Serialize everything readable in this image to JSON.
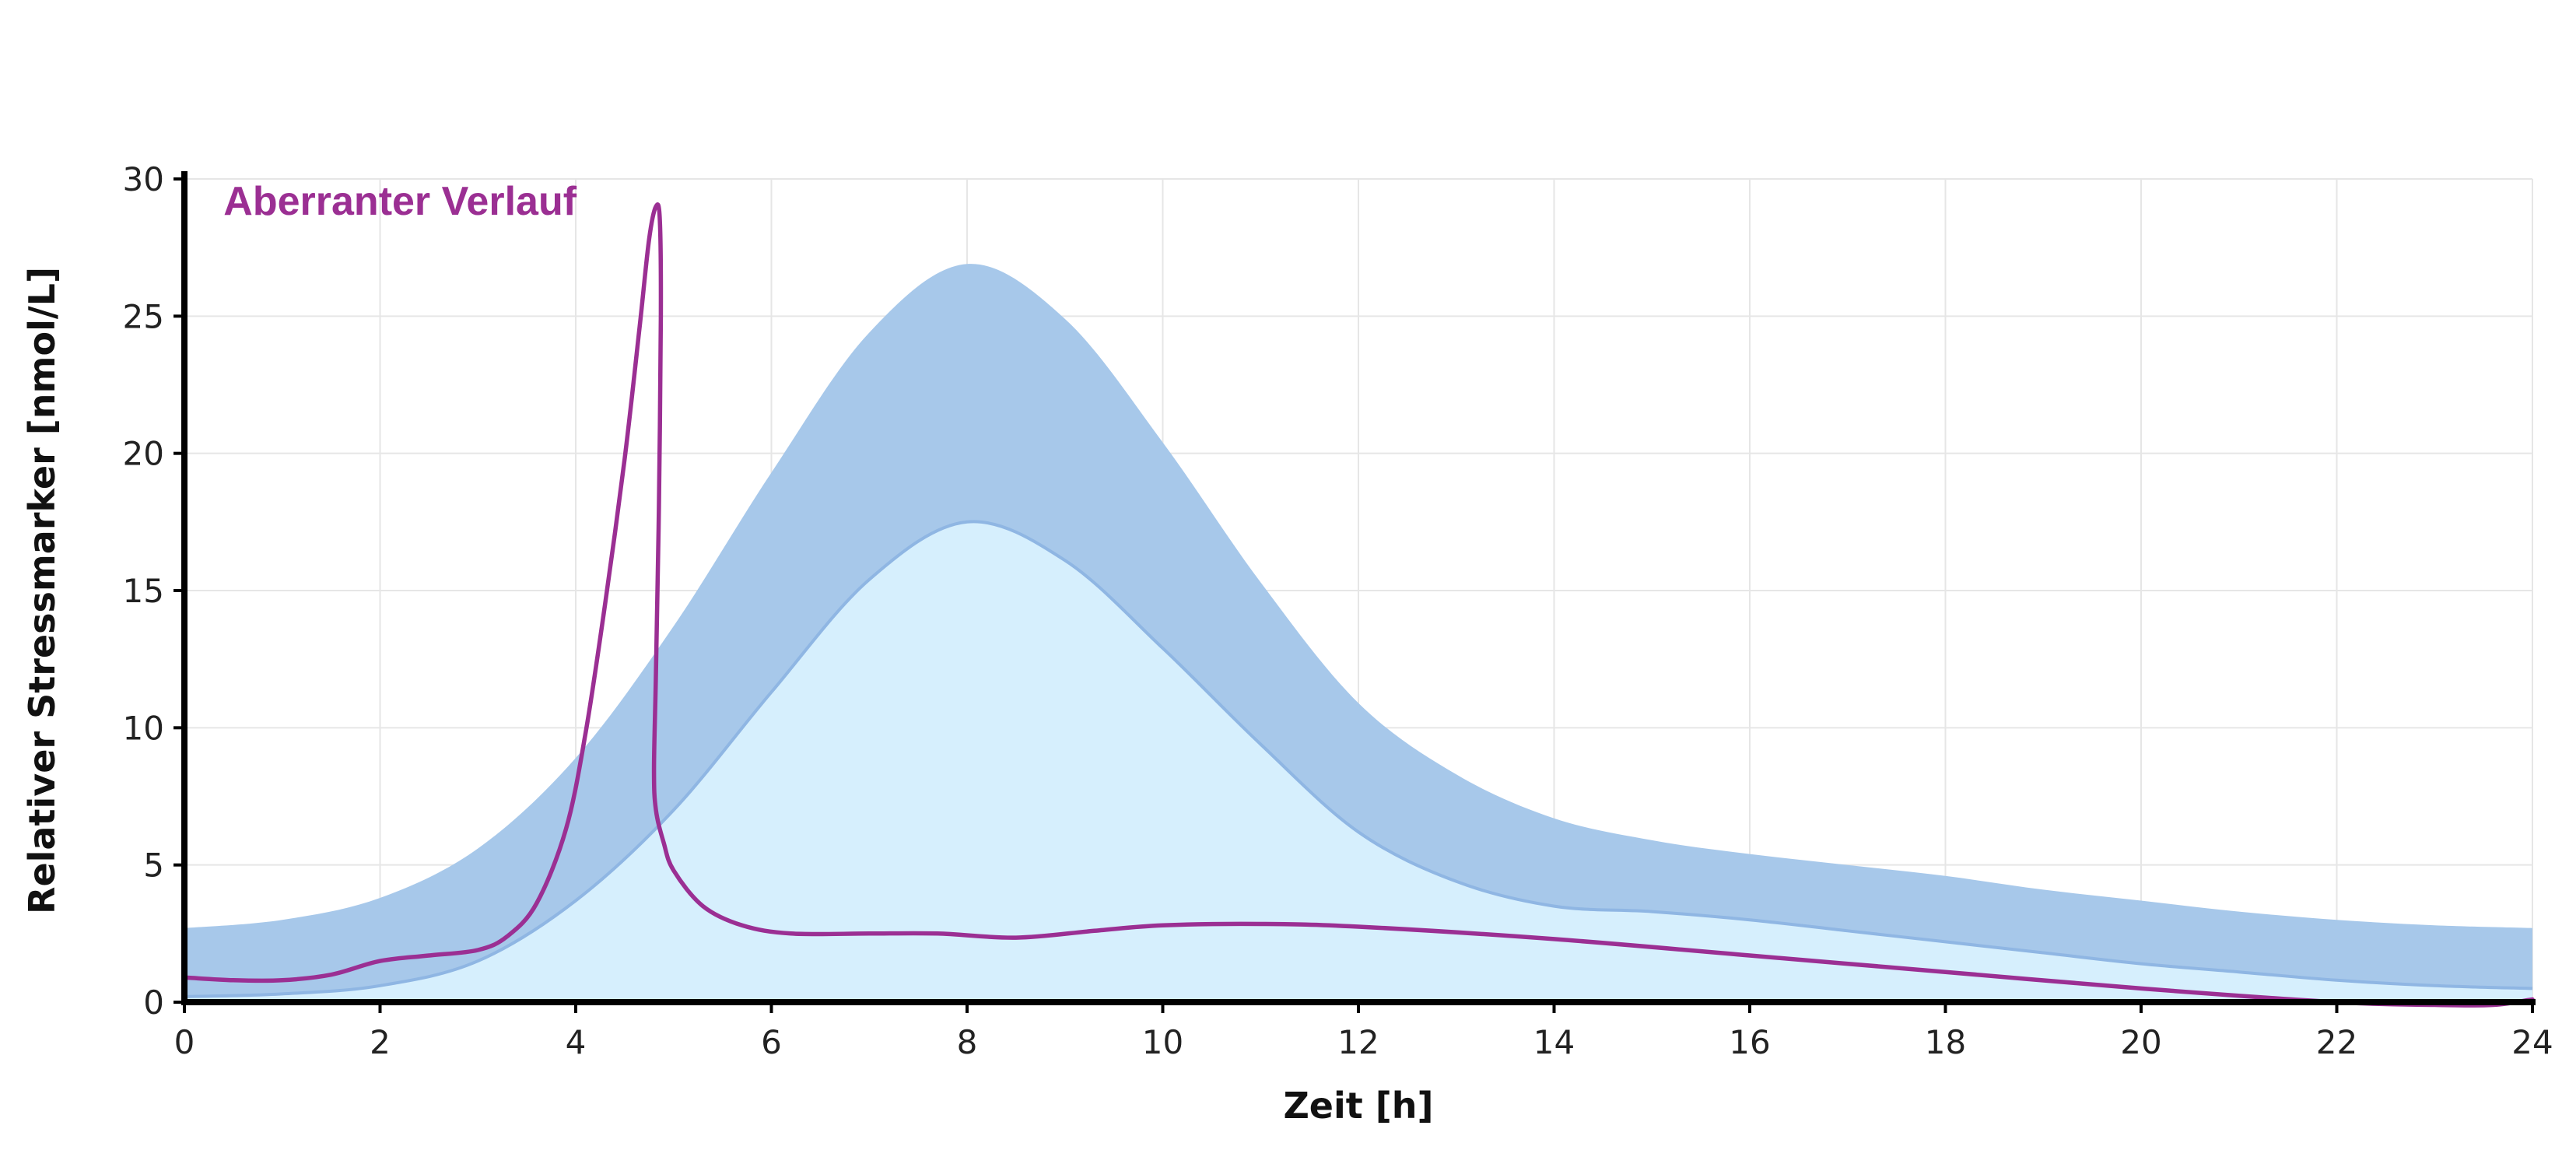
{
  "chart_data": {
    "type": "area",
    "title": "",
    "xlabel": "Zeit [h]",
    "ylabel": "Relativer Stressmarker [nmol/L]",
    "xlim": [
      0,
      24
    ],
    "ylim": [
      0,
      30
    ],
    "x_ticks": [
      0,
      2,
      4,
      6,
      8,
      10,
      12,
      14,
      16,
      18,
      20,
      22,
      24
    ],
    "y_ticks": [
      0,
      5,
      10,
      15,
      20,
      25,
      30
    ],
    "grid": true,
    "legend": "none",
    "colors": {
      "band": "#a7c8ea",
      "band_edge": "#8fb6e3",
      "lower_fill": "#d6effd",
      "aberrant": "#9b2f93"
    },
    "series": [
      {
        "role": "band-upper",
        "x": [
          0,
          1,
          2,
          3,
          4,
          5,
          6,
          7,
          8,
          9,
          10,
          11,
          12,
          13,
          14,
          15,
          16,
          17,
          18,
          19,
          20,
          21,
          22,
          23,
          24
        ],
        "y": [
          2.7,
          3.0,
          3.8,
          5.6,
          8.9,
          13.7,
          19.3,
          24.4,
          26.9,
          24.9,
          20.4,
          15.3,
          10.9,
          8.3,
          6.7,
          5.9,
          5.4,
          5.0,
          4.6,
          4.1,
          3.7,
          3.3,
          3.0,
          2.8,
          2.7
        ]
      },
      {
        "role": "band-lower",
        "x": [
          0,
          1,
          2,
          3,
          4,
          5,
          6,
          7,
          8,
          9,
          10,
          11,
          12,
          13,
          14,
          15,
          16,
          17,
          18,
          19,
          20,
          21,
          22,
          23,
          24
        ],
        "y": [
          0.2,
          0.3,
          0.6,
          1.5,
          3.7,
          7.0,
          11.3,
          15.4,
          17.5,
          16.1,
          12.9,
          9.4,
          6.2,
          4.4,
          3.5,
          3.3,
          3.0,
          2.6,
          2.2,
          1.8,
          1.4,
          1.1,
          0.8,
          0.6,
          0.5
        ]
      },
      {
        "name": "Aberranter Verlauf",
        "role": "aberrant",
        "x": [
          0,
          0.5,
          1,
          1.5,
          2,
          2.5,
          3,
          3.3,
          3.6,
          3.9,
          4.1,
          4.3,
          4.5,
          4.65,
          4.75,
          4.82,
          4.86,
          4.87,
          4.85,
          4.82,
          4.8,
          4.82,
          4.9,
          5.0,
          5.3,
          5.7,
          6.2,
          7.0,
          7.7,
          8.5,
          9.3,
          10.0,
          11.0,
          12.0,
          14.0,
          16.0,
          18.0,
          20.0,
          22.0,
          23.0,
          23.6,
          24.0
        ],
        "y": [
          0.9,
          0.8,
          0.8,
          1.0,
          1.5,
          1.7,
          1.9,
          2.4,
          3.6,
          6.3,
          9.8,
          14.5,
          19.8,
          24.5,
          27.8,
          29.0,
          28.5,
          25.0,
          18.0,
          12.0,
          8.5,
          7.0,
          5.8,
          4.8,
          3.5,
          2.8,
          2.5,
          2.5,
          2.5,
          2.35,
          2.6,
          2.8,
          2.85,
          2.75,
          2.3,
          1.7,
          1.1,
          0.5,
          0.0,
          -0.1,
          -0.1,
          0.1
        ]
      }
    ],
    "annotations": [
      {
        "text": "Aberranter Verlauf",
        "x": 0.4,
        "y": 28.7,
        "color": "#9b2f93"
      }
    ]
  }
}
